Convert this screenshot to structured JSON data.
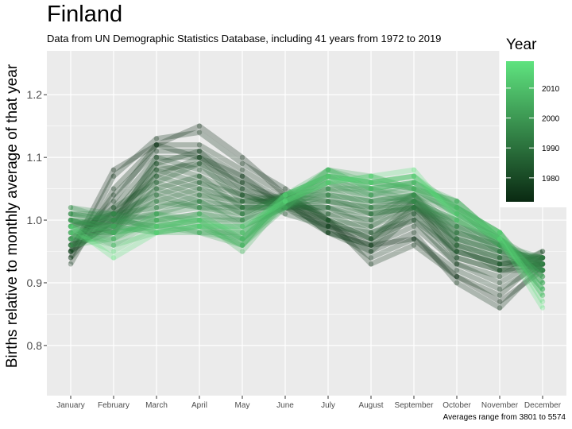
{
  "title": "Finland",
  "subtitle": "Data from UN Demographic Statistics Database, including 41 years from 1972 to 2019",
  "caption": "Averages range from 3801 to 5574",
  "chart_data": {
    "type": "line",
    "categories": [
      "January",
      "February",
      "March",
      "April",
      "May",
      "June",
      "July",
      "August",
      "September",
      "October",
      "November",
      "December"
    ],
    "ylabel": "Births relative to monthly average of that year",
    "xlabel": "",
    "ylim": [
      0.72,
      1.27
    ],
    "yticks": [
      0.8,
      0.9,
      1.0,
      1.1,
      1.2
    ],
    "ytick_labels": [
      "0.8",
      "0.9",
      "1.0",
      "1.1",
      "1.2"
    ],
    "grid": true,
    "legend": {
      "title": "Year",
      "placement": "right",
      "type": "colorbar",
      "range": [
        1972,
        2019
      ],
      "ticks": [
        1980,
        1990,
        2000,
        2010
      ],
      "tick_labels": [
        "1980",
        "1990",
        "2000",
        "2010"
      ],
      "color_low": "#0a2912",
      "color_high": "#5fe37f"
    },
    "colors": {
      "panel": "#ebebeb",
      "grid": "#ffffff"
    },
    "series": [
      {
        "year": 1972,
        "values": [
          0.95,
          1.08,
          1.12,
          1.15,
          1.1,
          1.04,
          0.99,
          0.96,
          0.97,
          0.91,
          0.87,
          0.92
        ]
      },
      {
        "year": 1973,
        "values": [
          0.94,
          1.07,
          1.13,
          1.14,
          1.09,
          1.05,
          1.0,
          0.95,
          0.98,
          0.9,
          0.86,
          0.93
        ]
      },
      {
        "year": 1974,
        "values": [
          0.93,
          1.05,
          1.12,
          1.12,
          1.08,
          1.04,
          1.0,
          0.93,
          0.96,
          0.91,
          0.88,
          0.94
        ]
      },
      {
        "year": 1975,
        "values": [
          0.95,
          1.04,
          1.11,
          1.11,
          1.07,
          1.03,
          0.99,
          0.94,
          0.97,
          0.92,
          0.89,
          0.93
        ]
      },
      {
        "year": 1976,
        "values": [
          0.96,
          1.03,
          1.12,
          1.1,
          1.06,
          1.03,
          0.98,
          0.96,
          0.99,
          0.93,
          0.9,
          0.94
        ]
      },
      {
        "year": 1977,
        "values": [
          0.94,
          1.02,
          1.1,
          1.1,
          1.07,
          1.02,
          0.99,
          0.97,
          1.0,
          0.93,
          0.91,
          0.95
        ]
      },
      {
        "year": 1978,
        "values": [
          0.96,
          1.01,
          1.09,
          1.11,
          1.05,
          1.03,
          0.98,
          0.95,
          1.01,
          0.94,
          0.92,
          0.93
        ]
      },
      {
        "year": 1979,
        "values": [
          0.95,
          1.0,
          1.08,
          1.09,
          1.06,
          1.02,
          0.98,
          0.96,
          1.02,
          0.95,
          0.93,
          0.94
        ]
      },
      {
        "year": 1980,
        "values": [
          0.97,
          1.01,
          1.07,
          1.1,
          1.04,
          1.03,
          1.0,
          0.97,
          1.03,
          0.94,
          0.92,
          0.92
        ]
      },
      {
        "year": 1981,
        "values": [
          0.96,
          0.99,
          1.1,
          1.08,
          1.05,
          1.01,
          0.99,
          0.98,
          1.0,
          0.95,
          0.93,
          0.93
        ]
      },
      {
        "year": 1982,
        "values": [
          0.95,
          1.0,
          1.09,
          1.07,
          1.04,
          1.02,
          1.0,
          0.97,
          1.02,
          0.96,
          0.92,
          0.95
        ]
      },
      {
        "year": 1983,
        "values": [
          0.97,
          1.02,
          1.06,
          1.09,
          1.03,
          1.03,
          1.01,
          0.98,
          1.01,
          0.95,
          0.93,
          0.94
        ]
      },
      {
        "year": 1984,
        "values": [
          0.96,
          0.98,
          1.08,
          1.06,
          1.04,
          1.02,
          1.02,
          0.99,
          1.03,
          0.96,
          0.94,
          0.92
        ]
      },
      {
        "year": 1985,
        "values": [
          0.98,
          1.0,
          1.05,
          1.07,
          1.02,
          1.04,
          1.0,
          0.99,
          1.02,
          0.97,
          0.93,
          0.93
        ]
      },
      {
        "year": 1986,
        "values": [
          0.97,
          0.99,
          1.07,
          1.05,
          1.03,
          1.03,
          1.01,
          1.0,
          1.04,
          0.96,
          0.94,
          0.94
        ]
      },
      {
        "year": 1987,
        "values": [
          0.99,
          1.01,
          1.04,
          1.06,
          1.02,
          1.02,
          1.02,
          1.0,
          1.03,
          0.97,
          0.95,
          0.92
        ]
      },
      {
        "year": 1988,
        "values": [
          0.98,
          0.98,
          1.06,
          1.04,
          1.03,
          1.04,
          1.03,
          1.01,
          1.02,
          0.98,
          0.94,
          0.93
        ]
      },
      {
        "year": 1989,
        "values": [
          0.99,
          1.0,
          1.03,
          1.05,
          1.01,
          1.03,
          1.02,
          1.01,
          1.04,
          0.97,
          0.95,
          0.94
        ]
      },
      {
        "year": 1990,
        "values": [
          1.0,
          0.99,
          1.05,
          1.03,
          1.02,
          1.02,
          1.03,
          1.02,
          1.03,
          0.98,
          0.96,
          0.93
        ]
      },
      {
        "year": 1991,
        "values": [
          0.99,
          1.01,
          1.02,
          1.04,
          1.01,
          1.04,
          1.04,
          1.01,
          1.02,
          0.99,
          0.95,
          0.92
        ]
      },
      {
        "year": 1992,
        "values": [
          1.0,
          0.98,
          1.04,
          1.02,
          1.02,
          1.03,
          1.03,
          1.02,
          1.04,
          0.98,
          0.96,
          0.93
        ]
      },
      {
        "year": 1993,
        "values": [
          1.01,
          1.0,
          1.01,
          1.03,
          1.0,
          1.02,
          1.04,
          1.03,
          1.03,
          0.99,
          0.95,
          0.94
        ]
      },
      {
        "year": 1994,
        "values": [
          1.0,
          0.99,
          1.03,
          1.02,
          1.01,
          1.04,
          1.05,
          1.02,
          1.02,
          1.0,
          0.96,
          0.92
        ]
      },
      {
        "year": 1995,
        "values": [
          1.01,
          1.01,
          1.0,
          1.01,
          1.0,
          1.03,
          1.04,
          1.03,
          1.04,
          0.99,
          0.97,
          0.93
        ]
      },
      {
        "year": 1996,
        "values": [
          1.0,
          0.98,
          1.02,
          1.03,
          0.99,
          1.02,
          1.05,
          1.04,
          1.03,
          1.0,
          0.96,
          0.94
        ]
      },
      {
        "year": 1997,
        "values": [
          1.02,
          1.0,
          0.99,
          1.0,
          1.0,
          1.04,
          1.06,
          1.03,
          1.04,
          1.01,
          0.97,
          0.92
        ]
      },
      {
        "year": 1998,
        "values": [
          1.01,
          0.99,
          1.01,
          1.02,
          0.98,
          1.03,
          1.05,
          1.05,
          1.03,
          1.0,
          0.96,
          0.93
        ]
      },
      {
        "year": 1999,
        "values": [
          1.02,
          1.01,
          0.98,
          0.99,
          0.99,
          1.02,
          1.07,
          1.04,
          1.05,
          1.01,
          0.97,
          0.91
        ]
      },
      {
        "year": 2000,
        "values": [
          1.0,
          0.98,
          1.0,
          1.01,
          0.97,
          1.03,
          1.06,
          1.05,
          1.04,
          1.02,
          0.96,
          0.92
        ]
      },
      {
        "year": 2001,
        "values": [
          1.01,
          1.0,
          0.99,
          0.98,
          0.98,
          1.04,
          1.07,
          1.06,
          1.05,
          1.01,
          0.97,
          0.91
        ]
      },
      {
        "year": 2002,
        "values": [
          0.99,
          0.97,
          1.01,
          1.0,
          0.96,
          1.02,
          1.06,
          1.04,
          1.06,
          1.02,
          0.98,
          0.9
        ]
      },
      {
        "year": 2003,
        "values": [
          1.0,
          0.99,
          0.98,
          0.99,
          0.97,
          1.03,
          1.08,
          1.06,
          1.05,
          1.03,
          0.97,
          0.91
        ]
      },
      {
        "year": 2004,
        "values": [
          0.98,
          0.96,
          1.0,
          0.98,
          0.96,
          1.04,
          1.07,
          1.05,
          1.06,
          1.02,
          0.96,
          0.9
        ]
      },
      {
        "year": 2005,
        "values": [
          0.99,
          0.98,
          0.99,
          1.0,
          0.97,
          1.02,
          1.08,
          1.07,
          1.05,
          1.03,
          0.97,
          0.89
        ]
      },
      {
        "year": 2006,
        "values": [
          0.97,
          0.97,
          1.01,
          0.99,
          0.96,
          1.03,
          1.07,
          1.06,
          1.07,
          1.02,
          0.98,
          0.9
        ]
      },
      {
        "year": 2007,
        "values": [
          0.98,
          0.99,
          0.98,
          0.98,
          0.97,
          1.04,
          1.08,
          1.05,
          1.06,
          1.03,
          0.97,
          0.89
        ]
      },
      {
        "year": 2008,
        "values": [
          0.96,
          0.97,
          1.0,
          1.0,
          0.95,
          1.03,
          1.06,
          1.07,
          1.05,
          1.02,
          0.98,
          0.88
        ]
      },
      {
        "year": 2009,
        "values": [
          0.97,
          0.98,
          0.99,
          0.99,
          0.96,
          1.04,
          1.07,
          1.06,
          1.07,
          1.01,
          0.97,
          0.89
        ]
      },
      {
        "year": 2010,
        "values": [
          0.99,
          0.96,
          0.98,
          1.01,
          0.97,
          1.03,
          1.08,
          1.05,
          1.06,
          1.02,
          0.98,
          0.88
        ]
      },
      {
        "year": 2016,
        "values": [
          0.98,
          0.95,
          0.99,
          1.0,
          0.98,
          1.04,
          1.07,
          1.06,
          1.07,
          1.01,
          0.98,
          0.87
        ]
      },
      {
        "year": 2019,
        "values": [
          0.99,
          0.94,
          0.98,
          0.99,
          0.99,
          1.03,
          1.06,
          1.07,
          1.08,
          1.0,
          0.97,
          0.86
        ]
      }
    ]
  }
}
